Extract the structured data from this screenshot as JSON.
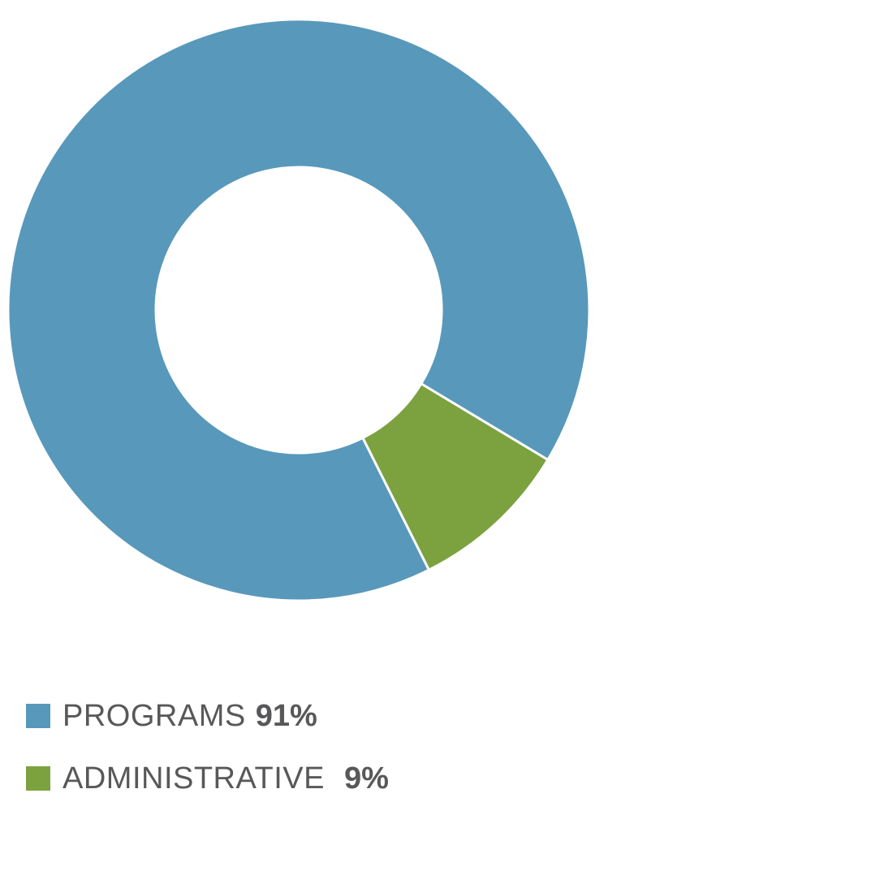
{
  "chart_data": {
    "type": "pie",
    "donut": true,
    "categories": [
      "PROGRAMS",
      "ADMINISTRATIVE"
    ],
    "values": [
      91,
      9
    ],
    "value_labels": [
      "91%",
      "9%"
    ],
    "colors": [
      "#5898bb",
      "#7ba23f"
    ],
    "legend": "bottom-left",
    "title": ""
  },
  "legend": {
    "items": [
      {
        "label": "PROGRAMS",
        "value": "91%",
        "color": "#5898bb"
      },
      {
        "label": "ADMINISTRATIVE",
        "value": "9%",
        "color": "#7ba23f"
      }
    ]
  }
}
